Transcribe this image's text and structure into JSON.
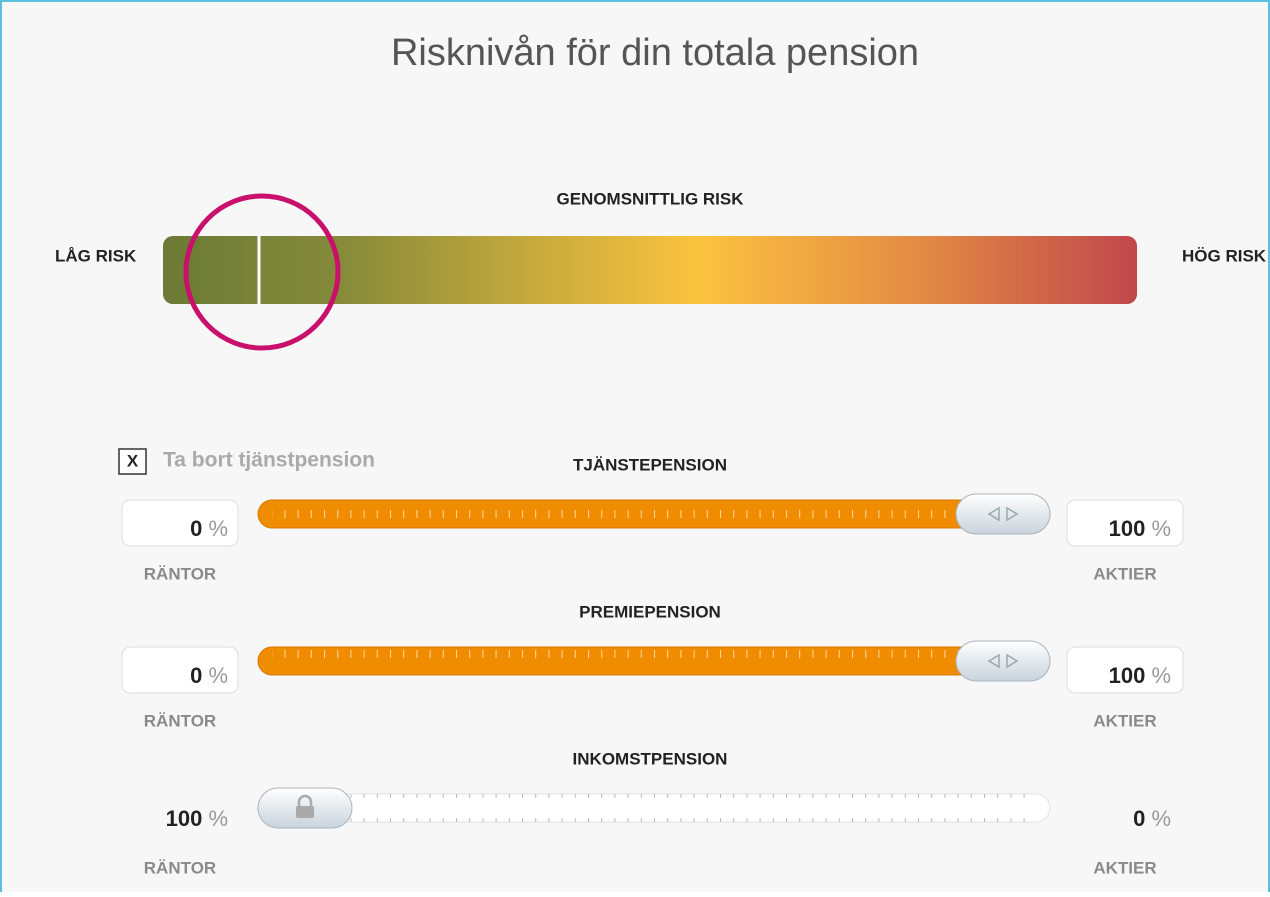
{
  "title": "Risknivån för din totala pension",
  "risk_scale": {
    "heading": "GENOMSNITTLIG RISK",
    "low_label": "LÅG RISK",
    "high_label": "HÖG RISK"
  },
  "checkbox": {
    "mark": "X",
    "label": "Ta bort tjänstpension"
  },
  "unit": "%",
  "sliders": [
    {
      "name": "TJÄNSTEPENSION",
      "left_value": 0,
      "left_label": "RÄNTOR",
      "right_value": 100,
      "right_label": "AKTIER",
      "locked": false
    },
    {
      "name": "PREMIEPENSION",
      "left_value": 0,
      "left_label": "RÄNTOR",
      "right_value": 100,
      "right_label": "AKTIER",
      "locked": false
    },
    {
      "name": "INKOMSTPENSION",
      "left_value": 100,
      "left_label": "RÄNTOR",
      "right_value": 0,
      "right_label": "AKTIER",
      "locked": true
    }
  ]
}
